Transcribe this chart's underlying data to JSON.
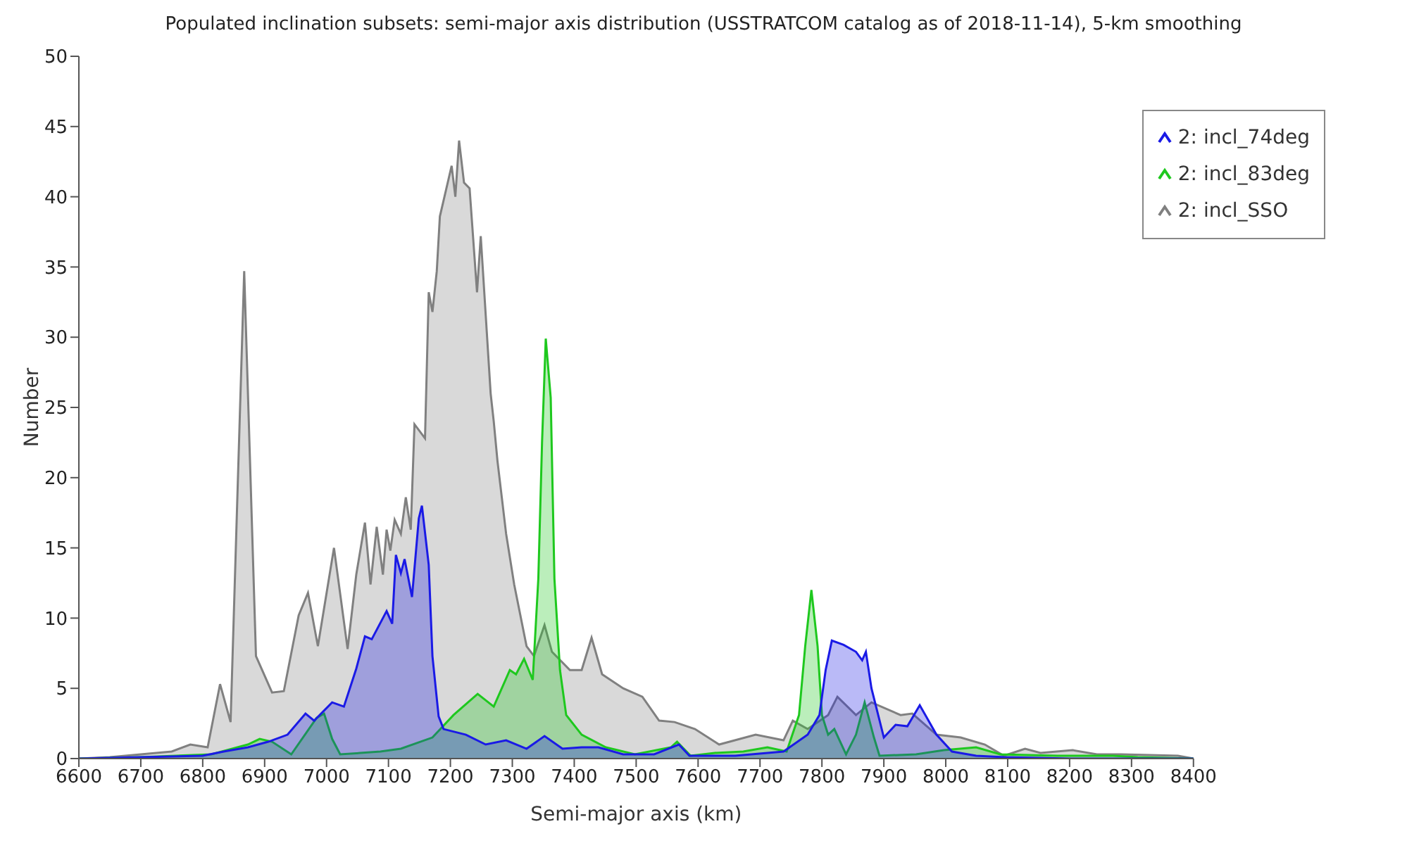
{
  "chart_data": {
    "type": "area",
    "title": "Populated inclination subsets: semi-major axis distribution (USSTRATCOM catalog as of 2018-11-14), 5-km smoothing",
    "xlabel": "Semi-major axis (km)",
    "ylabel": "Number",
    "xlim": [
      6600,
      8400
    ],
    "xticks": [
      6600,
      6700,
      6800,
      6900,
      7000,
      7100,
      7200,
      7300,
      7400,
      7500,
      7600,
      7700,
      7800,
      7900,
      8000,
      8100,
      8200,
      8300,
      8400
    ],
    "ylim": [
      0,
      50
    ],
    "yticks": [
      0,
      5,
      10,
      15,
      20,
      25,
      30,
      35,
      40,
      45,
      50
    ],
    "grid": false,
    "legend": "top right",
    "marker": "none",
    "line_style": "solid",
    "series": [
      {
        "name": "2: incl_74deg",
        "color": "#1a1ae6",
        "x": [
          6600,
          6700,
          6800,
          6834,
          6873,
          6906,
          6937,
          6966,
          6980,
          7009,
          7028,
          7048,
          7062,
          7073,
          7097,
          7106,
          7112,
          7120,
          7126,
          7138,
          7149,
          7154,
          7165,
          7171,
          7181,
          7189,
          7225,
          7257,
          7290,
          7323,
          7352,
          7381,
          7412,
          7439,
          7479,
          7529,
          7569,
          7586,
          7660,
          7738,
          7777,
          7796,
          7806,
          7816,
          7835,
          7855,
          7865,
          7871,
          7880,
          7900,
          7919,
          7938,
          7958,
          7985,
          8010,
          8049,
          8094,
          8200,
          8400
        ],
        "values": [
          0,
          0.1,
          0.2,
          0.5,
          0.8,
          1.2,
          1.7,
          3.2,
          2.7,
          4,
          3.7,
          6.4,
          8.7,
          8.5,
          10.5,
          9.6,
          14.5,
          13.2,
          14.2,
          11.5,
          17.1,
          18,
          13.8,
          7.3,
          3,
          2.1,
          1.7,
          1,
          1.3,
          0.7,
          1.6,
          0.7,
          0.8,
          0.8,
          0.3,
          0.3,
          1,
          0.2,
          0.2,
          0.5,
          1.7,
          3.1,
          6.3,
          8.4,
          8.1,
          7.6,
          7,
          7.6,
          5,
          1.5,
          2.4,
          2.3,
          3.8,
          1.7,
          0.5,
          0.2,
          0.1,
          0,
          0
        ]
      },
      {
        "name": "2: incl_83deg",
        "color": "#1ec81e",
        "x": [
          6600,
          6700,
          6814,
          6873,
          6892,
          6912,
          6943,
          6984,
          6996,
          7009,
          7022,
          7087,
          7120,
          7171,
          7205,
          7244,
          7270,
          7296,
          7306,
          7319,
          7333,
          7342,
          7348,
          7354,
          7362,
          7368,
          7377,
          7387,
          7412,
          7451,
          7498,
          7556,
          7566,
          7588,
          7627,
          7673,
          7712,
          7743,
          7763,
          7773,
          7783,
          7793,
          7800,
          7810,
          7820,
          7839,
          7855,
          7869,
          7884,
          7893,
          7952,
          7997,
          8049,
          8088,
          8180,
          8270,
          8310,
          8400
        ],
        "values": [
          0,
          0.1,
          0.3,
          1,
          1.4,
          1.2,
          0.3,
          2.9,
          3.2,
          1.4,
          0.3,
          0.5,
          0.7,
          1.5,
          3.1,
          4.6,
          3.7,
          6.3,
          6,
          7.1,
          5.6,
          12.8,
          22.5,
          29.9,
          25.7,
          12.8,
          6.3,
          3.1,
          1.7,
          0.8,
          0.3,
          0.8,
          1.2,
          0.2,
          0.4,
          0.5,
          0.8,
          0.5,
          3.1,
          8,
          12,
          8,
          3.1,
          1.7,
          2.1,
          0.3,
          1.7,
          4,
          1.5,
          0.2,
          0.3,
          0.6,
          0.8,
          0.3,
          0.2,
          0.2,
          0.1,
          0
        ]
      },
      {
        "name": "2: incl_SSO",
        "color": "#808080",
        "x": [
          6600,
          6650,
          6700,
          6750,
          6780,
          6808,
          6828,
          6845,
          6867,
          6886,
          6912,
          6931,
          6955,
          6970,
          6986,
          7012,
          7034,
          7048,
          7062,
          7071,
          7081,
          7091,
          7097,
          7103,
          7110,
          7120,
          7128,
          7136,
          7142,
          7159,
          7165,
          7171,
          7178,
          7183,
          7202,
          7208,
          7214,
          7222,
          7231,
          7243,
          7249,
          7257,
          7265,
          7270,
          7276,
          7290,
          7303,
          7323,
          7335,
          7352,
          7364,
          7393,
          7412,
          7428,
          7445,
          7479,
          7510,
          7537,
          7562,
          7595,
          7634,
          7693,
          7738,
          7753,
          7777,
          7810,
          7825,
          7855,
          7880,
          7927,
          7946,
          7985,
          8024,
          8063,
          8094,
          8128,
          8153,
          8205,
          8244,
          8283,
          8375,
          8400
        ],
        "values": [
          0,
          0.1,
          0.3,
          0.5,
          1,
          0.8,
          5.3,
          2.6,
          34.7,
          7.3,
          4.7,
          4.8,
          10.2,
          11.8,
          8,
          15,
          7.8,
          13.1,
          16.8,
          12.4,
          16.5,
          13.1,
          16.3,
          14.8,
          17,
          16,
          18.6,
          16.3,
          23.8,
          22.8,
          33.2,
          31.8,
          34.7,
          38.6,
          42.2,
          40,
          44,
          41,
          40.6,
          33.2,
          37.2,
          31.6,
          26,
          24,
          21.2,
          16,
          12.4,
          8,
          7.3,
          9.5,
          7.6,
          6.3,
          6.3,
          8.6,
          6,
          5,
          4.4,
          2.7,
          2.6,
          2.1,
          1,
          1.7,
          1.3,
          2.7,
          2.1,
          3.1,
          4.4,
          3.1,
          4,
          3.1,
          3.2,
          1.7,
          1.5,
          1,
          0.2,
          0.7,
          0.4,
          0.6,
          0.3,
          0.3,
          0.2,
          0
        ]
      }
    ]
  }
}
